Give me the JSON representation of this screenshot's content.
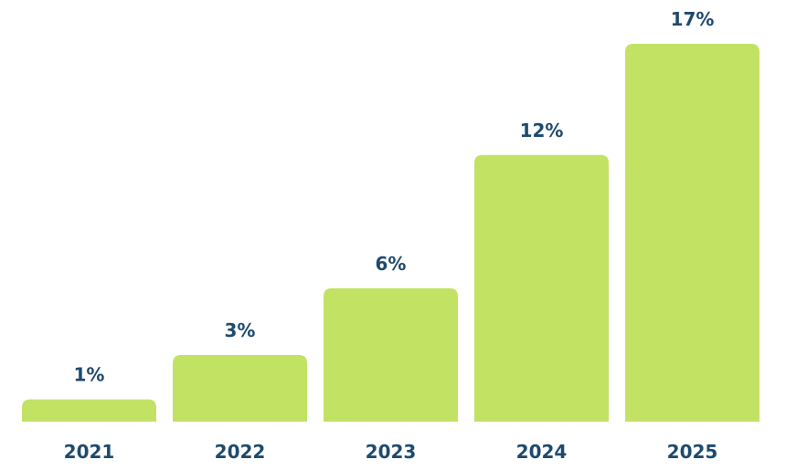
{
  "chart_data": {
    "type": "bar",
    "categories": [
      "2021",
      "2022",
      "2023",
      "2024",
      "2025"
    ],
    "values": [
      1,
      3,
      6,
      12,
      17
    ],
    "value_labels": [
      "1%",
      "3%",
      "6%",
      "12%",
      "17%"
    ],
    "title": "",
    "xlabel": "",
    "ylabel": "",
    "ylim": [
      0,
      17
    ],
    "grid": false,
    "legend": "none"
  },
  "colors": {
    "bar": "#c2e264",
    "text": "#1e4a6e",
    "background": "#ffffff"
  }
}
